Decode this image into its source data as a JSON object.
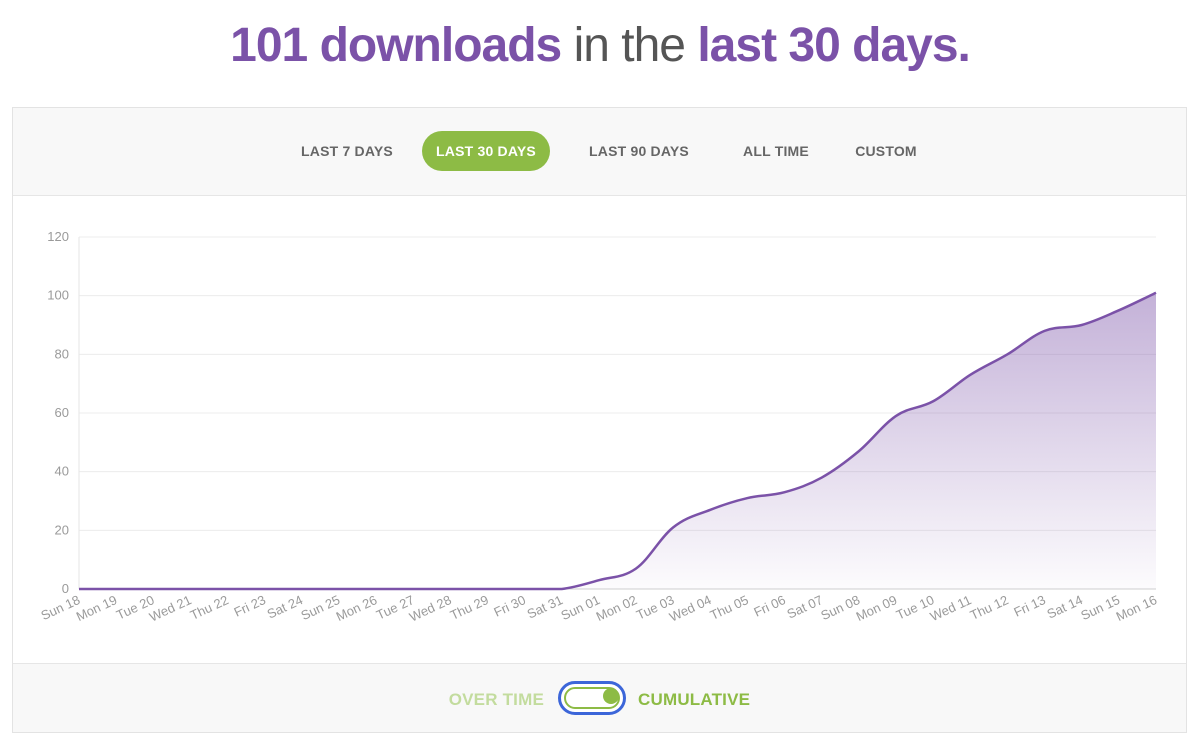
{
  "headline": {
    "count": "101 downloads",
    "connector": "in the",
    "period": "last 30 days."
  },
  "tabs": [
    {
      "label": "LAST 7 DAYS",
      "active": false
    },
    {
      "label": "LAST 30 DAYS",
      "active": true
    },
    {
      "label": "LAST 90 DAYS",
      "active": false
    },
    {
      "label": "ALL TIME",
      "active": false
    },
    {
      "label": "CUSTOM",
      "active": false
    }
  ],
  "toggle": {
    "left_label": "OVER TIME",
    "right_label": "CUMULATIVE",
    "state": "cumulative"
  },
  "colors": {
    "accent": "#7b52a8",
    "green": "#8dbb45",
    "toggle_focus": "#3c66d9"
  },
  "chart_data": {
    "type": "area",
    "x": [
      "Sun 18",
      "Mon 19",
      "Tue 20",
      "Wed 21",
      "Thu 22",
      "Fri 23",
      "Sat 24",
      "Sun 25",
      "Mon 26",
      "Tue 27",
      "Wed 28",
      "Thu 29",
      "Fri 30",
      "Sat 31",
      "Sun 01",
      "Mon 02",
      "Tue 03",
      "Wed 04",
      "Thu 05",
      "Fri 06",
      "Sat 07",
      "Sun 08",
      "Mon 09",
      "Tue 10",
      "Wed 11",
      "Thu 12",
      "Fri 13",
      "Sat 14",
      "Sun 15",
      "Mon 16"
    ],
    "series": [
      {
        "values": [
          0,
          0,
          0,
          0,
          0,
          0,
          0,
          0,
          0,
          0,
          0,
          0,
          0,
          0,
          3,
          7,
          21,
          27,
          31,
          33,
          38,
          47,
          59,
          64,
          73,
          80,
          88,
          90,
          95,
          101
        ]
      }
    ],
    "yticks": [
      0,
      20,
      40,
      60,
      80,
      100,
      120
    ],
    "ylim": [
      0,
      120
    ],
    "grid": true,
    "legend": "none",
    "line_color": "#7b52a8"
  }
}
